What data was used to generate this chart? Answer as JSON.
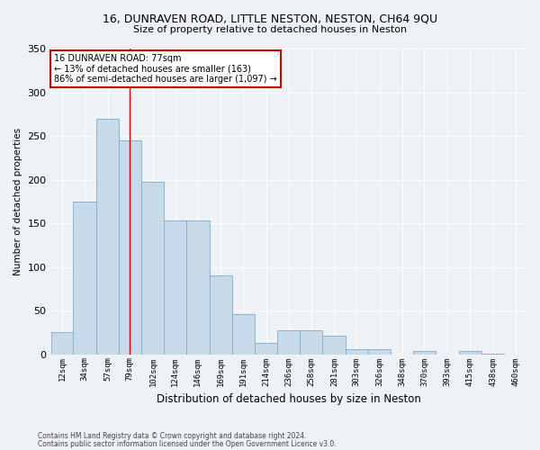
{
  "title1": "16, DUNRAVEN ROAD, LITTLE NESTON, NESTON, CH64 9QU",
  "title2": "Size of property relative to detached houses in Neston",
  "xlabel": "Distribution of detached houses by size in Neston",
  "ylabel": "Number of detached properties",
  "categories": [
    "12sqm",
    "34sqm",
    "57sqm",
    "79sqm",
    "102sqm",
    "124sqm",
    "146sqm",
    "169sqm",
    "191sqm",
    "214sqm",
    "236sqm",
    "258sqm",
    "281sqm",
    "303sqm",
    "326sqm",
    "348sqm",
    "370sqm",
    "393sqm",
    "415sqm",
    "438sqm",
    "460sqm"
  ],
  "cat_vals": [
    12,
    34,
    57,
    79,
    102,
    124,
    146,
    169,
    191,
    214,
    236,
    258,
    281,
    303,
    326,
    348,
    370,
    393,
    415,
    438,
    460
  ],
  "bar_heights": [
    25,
    175,
    270,
    245,
    197,
    153,
    153,
    90,
    46,
    13,
    27,
    27,
    21,
    6,
    6,
    0,
    4,
    0,
    4,
    1,
    0
  ],
  "bar_color": "#c8d9ea",
  "bar_edge_color": "#7aaec8",
  "annotation_text_line1": "16 DUNRAVEN ROAD: 77sqm",
  "annotation_text_line2": "← 13% of detached houses are smaller (163)",
  "annotation_text_line3": "86% of semi-detached houses are larger (1,097) →",
  "annotation_box_facecolor": "#ffffff",
  "annotation_box_edgecolor": "#cc0000",
  "vline_color": "#cc0000",
  "vline_x": 79,
  "ylim": [
    0,
    350
  ],
  "yticks": [
    0,
    50,
    100,
    150,
    200,
    250,
    300,
    350
  ],
  "background_color": "#eef2f7",
  "grid_color": "#ffffff",
  "footer1": "Contains HM Land Registry data © Crown copyright and database right 2024.",
  "footer2": "Contains public sector information licensed under the Open Government Licence v3.0."
}
